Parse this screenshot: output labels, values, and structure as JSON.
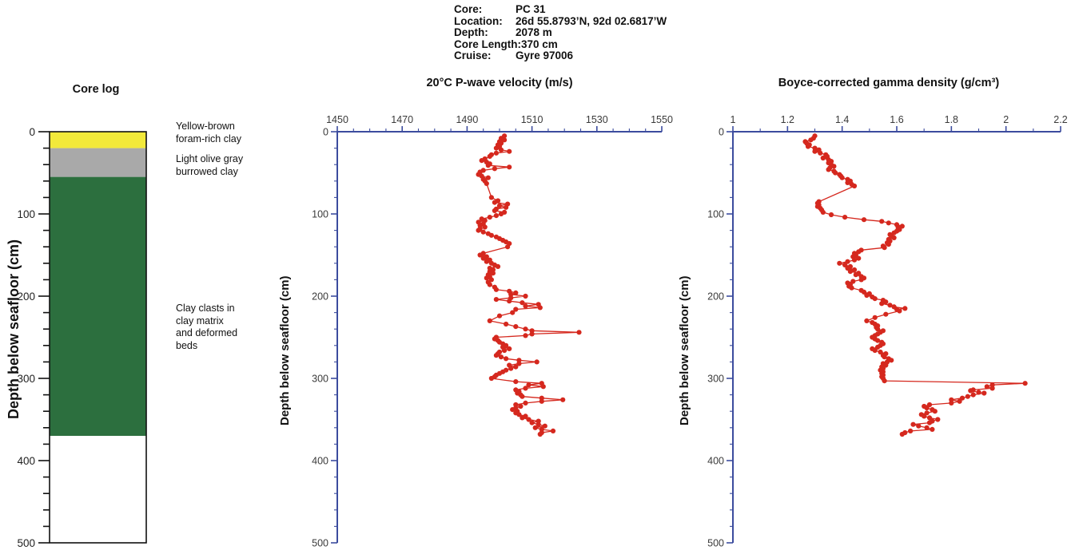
{
  "header": {
    "rows": [
      {
        "label": "Core:",
        "value": "PC 31"
      },
      {
        "label": "Location:",
        "value": "26d 55.8793’N, 92d 02.6817’W"
      },
      {
        "label": "Depth:",
        "value": "2078 m"
      },
      {
        "label": "Core Length:",
        "value": "370 cm"
      },
      {
        "label": "Cruise:",
        "value": "Gyre 97006"
      }
    ]
  },
  "colors": {
    "axis": "#3c4c9e",
    "tick_label": "#3a3a3a",
    "series": "#d5281e",
    "core_border": "#111111"
  },
  "chart_data": [
    {
      "type": "strat-column",
      "title": "Core log",
      "ylabel": "Depth below seafloor (cm)",
      "ylim": [
        0,
        500
      ],
      "y_major": 100,
      "y_minor": 20,
      "layers": [
        {
          "label": "Yellow-brown\nforam-rich clay",
          "top_cm": 0,
          "bottom_cm": 20,
          "color": "#f2e93a"
        },
        {
          "label": "Light olive gray\nburrowed clay",
          "top_cm": 20,
          "bottom_cm": 55,
          "color": "#a9a9a9"
        },
        {
          "label": "Clay clasts in\nclay matrix\nand deformed\nbeds",
          "top_cm": 55,
          "bottom_cm": 370,
          "color": "#2c6f3e"
        },
        {
          "label": "",
          "top_cm": 370,
          "bottom_cm": 500,
          "color": "#ffffff"
        }
      ]
    },
    {
      "type": "line",
      "title": "20°C P-wave velocity (m/s)",
      "ylabel": "Depth below seafloor (cm)",
      "xlim": [
        1450,
        1550
      ],
      "x_major": 20,
      "x_minor": 5,
      "ylim": [
        0,
        500
      ],
      "y_major": 100,
      "y_minor": 20,
      "legend": "none",
      "grid": false,
      "x_axis_position": "top",
      "marker": "circle",
      "points": [
        [
          5,
          1501.5
        ],
        [
          8,
          1500.5
        ],
        [
          10,
          1501.5
        ],
        [
          12,
          1500
        ],
        [
          14,
          1500.5
        ],
        [
          16,
          1499.5
        ],
        [
          18,
          1500
        ],
        [
          20,
          1499
        ],
        [
          22,
          1500.5
        ],
        [
          24,
          1503
        ],
        [
          26,
          1499
        ],
        [
          28,
          1497.5
        ],
        [
          30,
          1497
        ],
        [
          33,
          1495.5
        ],
        [
          35,
          1494.5
        ],
        [
          37,
          1496
        ],
        [
          39,
          1497
        ],
        [
          41,
          1496.5
        ],
        [
          43,
          1503
        ],
        [
          45,
          1498.5
        ],
        [
          47,
          1495
        ],
        [
          49,
          1494
        ],
        [
          52,
          1493.5
        ],
        [
          54,
          1494.5
        ],
        [
          56,
          1496.5
        ],
        [
          58,
          1495
        ],
        [
          60,
          1495.5
        ],
        [
          63,
          1496
        ],
        [
          80,
          1497.5
        ],
        [
          84,
          1499.5
        ],
        [
          86,
          1498.5
        ],
        [
          88,
          1502.5
        ],
        [
          90,
          1500
        ],
        [
          92,
          1502
        ],
        [
          94,
          1499
        ],
        [
          96,
          1498.5
        ],
        [
          98,
          1501.5
        ],
        [
          100,
          1500.5
        ],
        [
          102,
          1499
        ],
        [
          104,
          1497
        ],
        [
          106,
          1494.5
        ],
        [
          108,
          1495.5
        ],
        [
          110,
          1493.5
        ],
        [
          112,
          1495
        ],
        [
          114,
          1494
        ],
        [
          116,
          1495.5
        ],
        [
          118,
          1494
        ],
        [
          120,
          1493.5
        ],
        [
          122,
          1495
        ],
        [
          124,
          1496.5
        ],
        [
          126,
          1497.5
        ],
        [
          128,
          1499
        ],
        [
          130,
          1500
        ],
        [
          132,
          1501
        ],
        [
          134,
          1502
        ],
        [
          136,
          1503
        ],
        [
          140,
          1502.5
        ],
        [
          148,
          1495
        ],
        [
          150,
          1494
        ],
        [
          152,
          1496
        ],
        [
          154,
          1495
        ],
        [
          156,
          1497
        ],
        [
          158,
          1496
        ],
        [
          160,
          1497.5
        ],
        [
          162,
          1498.5
        ],
        [
          164,
          1499.5
        ],
        [
          166,
          1497
        ],
        [
          168,
          1498
        ],
        [
          170,
          1497
        ],
        [
          172,
          1498
        ],
        [
          174,
          1496.5
        ],
        [
          176,
          1497
        ],
        [
          178,
          1496
        ],
        [
          180,
          1497.5
        ],
        [
          183,
          1496.5
        ],
        [
          186,
          1497
        ],
        [
          189,
          1498.5
        ],
        [
          192,
          1499
        ],
        [
          194,
          1503
        ],
        [
          196,
          1505
        ],
        [
          198,
          1503.5
        ],
        [
          200,
          1508
        ],
        [
          202,
          1503.5
        ],
        [
          204,
          1499
        ],
        [
          206,
          1503
        ],
        [
          208,
          1507
        ],
        [
          210,
          1512
        ],
        [
          212,
          1508
        ],
        [
          214,
          1512.5
        ],
        [
          216,
          1505
        ],
        [
          220,
          1504
        ],
        [
          224,
          1500
        ],
        [
          230,
          1497
        ],
        [
          234,
          1502
        ],
        [
          237,
          1505
        ],
        [
          240,
          1508
        ],
        [
          242,
          1510
        ],
        [
          244,
          1524.5
        ],
        [
          246,
          1510
        ],
        [
          248,
          1508
        ],
        [
          250,
          1499
        ],
        [
          252,
          1498.5
        ],
        [
          254,
          1499.5
        ],
        [
          256,
          1500
        ],
        [
          258,
          1501
        ],
        [
          260,
          1502
        ],
        [
          262,
          1501
        ],
        [
          264,
          1503
        ],
        [
          266,
          1501.5
        ],
        [
          268,
          1500
        ],
        [
          270,
          1499.5
        ],
        [
          272,
          1499
        ],
        [
          274,
          1500.5
        ],
        [
          276,
          1502
        ],
        [
          278,
          1506
        ],
        [
          280,
          1511.5
        ],
        [
          282,
          1506
        ],
        [
          284,
          1503
        ],
        [
          286,
          1505
        ],
        [
          288,
          1503.5
        ],
        [
          290,
          1502
        ],
        [
          292,
          1501
        ],
        [
          294,
          1500
        ],
        [
          296,
          1499
        ],
        [
          298,
          1498.5
        ],
        [
          300,
          1497.5
        ],
        [
          304,
          1505
        ],
        [
          306,
          1513
        ],
        [
          308,
          1509
        ],
        [
          310,
          1513.5
        ],
        [
          312,
          1508
        ],
        [
          314,
          1505
        ],
        [
          316,
          1506
        ],
        [
          318,
          1505.5
        ],
        [
          320,
          1506.5
        ],
        [
          322,
          1507
        ],
        [
          324,
          1513
        ],
        [
          326,
          1519.5
        ],
        [
          328,
          1513
        ],
        [
          330,
          1508
        ],
        [
          332,
          1505
        ],
        [
          334,
          1506.5
        ],
        [
          336,
          1505
        ],
        [
          338,
          1504
        ],
        [
          340,
          1505.5
        ],
        [
          342,
          1505
        ],
        [
          344,
          1506
        ],
        [
          346,
          1508
        ],
        [
          348,
          1507
        ],
        [
          350,
          1509
        ],
        [
          352,
          1512
        ],
        [
          354,
          1510
        ],
        [
          356,
          1512
        ],
        [
          358,
          1514
        ],
        [
          360,
          1511
        ],
        [
          362,
          1513
        ],
        [
          364,
          1516.5
        ],
        [
          366,
          1513
        ],
        [
          368,
          1512.5
        ]
      ]
    },
    {
      "type": "line",
      "title": "Boyce-corrected gamma density (g/cm³)",
      "ylabel": "Depth below seafloor (cm)",
      "xlim": [
        1,
        2.2
      ],
      "x_major": 0.2,
      "x_minor": 0.1,
      "ylim": [
        0,
        500
      ],
      "y_major": 100,
      "y_minor": 20,
      "legend": "none",
      "grid": false,
      "x_axis_position": "top",
      "marker": "circle",
      "points": [
        [
          5,
          1.3
        ],
        [
          8,
          1.295
        ],
        [
          10,
          1.285
        ],
        [
          12,
          1.265
        ],
        [
          14,
          1.27
        ],
        [
          16,
          1.28
        ],
        [
          18,
          1.275
        ],
        [
          20,
          1.3
        ],
        [
          22,
          1.315
        ],
        [
          24,
          1.3
        ],
        [
          26,
          1.32
        ],
        [
          28,
          1.34
        ],
        [
          30,
          1.345
        ],
        [
          32,
          1.33
        ],
        [
          34,
          1.35
        ],
        [
          36,
          1.36
        ],
        [
          38,
          1.35
        ],
        [
          40,
          1.36
        ],
        [
          42,
          1.37
        ],
        [
          44,
          1.355
        ],
        [
          46,
          1.35
        ],
        [
          48,
          1.37
        ],
        [
          50,
          1.375
        ],
        [
          52,
          1.39
        ],
        [
          54,
          1.395
        ],
        [
          56,
          1.4
        ],
        [
          58,
          1.42
        ],
        [
          60,
          1.43
        ],
        [
          62,
          1.42
        ],
        [
          64,
          1.435
        ],
        [
          66,
          1.445
        ],
        [
          85,
          1.315
        ],
        [
          87,
          1.31
        ],
        [
          89,
          1.315
        ],
        [
          91,
          1.31
        ],
        [
          93,
          1.32
        ],
        [
          95,
          1.325
        ],
        [
          98,
          1.33
        ],
        [
          101,
          1.36
        ],
        [
          104,
          1.41
        ],
        [
          107,
          1.48
        ],
        [
          109,
          1.545
        ],
        [
          111,
          1.57
        ],
        [
          113,
          1.6
        ],
        [
          115,
          1.62
        ],
        [
          117,
          1.605
        ],
        [
          119,
          1.61
        ],
        [
          121,
          1.6
        ],
        [
          123,
          1.59
        ],
        [
          125,
          1.575
        ],
        [
          127,
          1.58
        ],
        [
          129,
          1.59
        ],
        [
          131,
          1.57
        ],
        [
          133,
          1.575
        ],
        [
          135,
          1.565
        ],
        [
          137,
          1.57
        ],
        [
          139,
          1.55
        ],
        [
          141,
          1.555
        ],
        [
          144,
          1.47
        ],
        [
          146,
          1.46
        ],
        [
          148,
          1.445
        ],
        [
          150,
          1.45
        ],
        [
          152,
          1.44
        ],
        [
          154,
          1.46
        ],
        [
          156,
          1.445
        ],
        [
          158,
          1.42
        ],
        [
          160,
          1.39
        ],
        [
          162,
          1.41
        ],
        [
          164,
          1.43
        ],
        [
          166,
          1.42
        ],
        [
          168,
          1.445
        ],
        [
          170,
          1.43
        ],
        [
          172,
          1.46
        ],
        [
          174,
          1.45
        ],
        [
          176,
          1.47
        ],
        [
          178,
          1.48
        ],
        [
          180,
          1.47
        ],
        [
          182,
          1.44
        ],
        [
          184,
          1.42
        ],
        [
          186,
          1.43
        ],
        [
          188,
          1.425
        ],
        [
          190,
          1.435
        ],
        [
          193,
          1.47
        ],
        [
          195,
          1.48
        ],
        [
          197,
          1.5
        ],
        [
          199,
          1.49
        ],
        [
          201,
          1.51
        ],
        [
          203,
          1.52
        ],
        [
          205,
          1.55
        ],
        [
          207,
          1.56
        ],
        [
          209,
          1.545
        ],
        [
          211,
          1.575
        ],
        [
          213,
          1.59
        ],
        [
          215,
          1.63
        ],
        [
          216,
          1.6
        ],
        [
          218,
          1.61
        ],
        [
          222,
          1.56
        ],
        [
          226,
          1.52
        ],
        [
          230,
          1.49
        ],
        [
          232,
          1.51
        ],
        [
          234,
          1.52
        ],
        [
          236,
          1.53
        ],
        [
          238,
          1.525
        ],
        [
          240,
          1.53
        ],
        [
          242,
          1.55
        ],
        [
          244,
          1.54
        ],
        [
          246,
          1.53
        ],
        [
          248,
          1.52
        ],
        [
          250,
          1.51
        ],
        [
          252,
          1.52
        ],
        [
          254,
          1.53
        ],
        [
          256,
          1.545
        ],
        [
          258,
          1.55
        ],
        [
          260,
          1.54
        ],
        [
          262,
          1.53
        ],
        [
          264,
          1.51
        ],
        [
          266,
          1.52
        ],
        [
          268,
          1.54
        ],
        [
          270,
          1.56
        ],
        [
          272,
          1.55
        ],
        [
          274,
          1.555
        ],
        [
          276,
          1.57
        ],
        [
          278,
          1.58
        ],
        [
          280,
          1.565
        ],
        [
          282,
          1.55
        ],
        [
          284,
          1.56
        ],
        [
          286,
          1.545
        ],
        [
          288,
          1.55
        ],
        [
          290,
          1.54
        ],
        [
          292,
          1.55
        ],
        [
          294,
          1.545
        ],
        [
          296,
          1.55
        ],
        [
          298,
          1.545
        ],
        [
          300,
          1.55
        ],
        [
          303,
          1.555
        ],
        [
          306,
          2.07
        ],
        [
          308,
          1.95
        ],
        [
          310,
          1.93
        ],
        [
          312,
          1.95
        ],
        [
          314,
          1.88
        ],
        [
          315,
          1.87
        ],
        [
          317,
          1.9
        ],
        [
          318,
          1.92
        ],
        [
          320,
          1.88
        ],
        [
          322,
          1.86
        ],
        [
          324,
          1.84
        ],
        [
          326,
          1.8
        ],
        [
          328,
          1.83
        ],
        [
          330,
          1.8
        ],
        [
          332,
          1.72
        ],
        [
          334,
          1.7
        ],
        [
          336,
          1.71
        ],
        [
          338,
          1.73
        ],
        [
          340,
          1.74
        ],
        [
          342,
          1.71
        ],
        [
          344,
          1.69
        ],
        [
          346,
          1.7
        ],
        [
          348,
          1.72
        ],
        [
          350,
          1.75
        ],
        [
          352,
          1.73
        ],
        [
          354,
          1.72
        ],
        [
          356,
          1.66
        ],
        [
          358,
          1.68
        ],
        [
          360,
          1.71
        ],
        [
          362,
          1.73
        ],
        [
          364,
          1.65
        ],
        [
          366,
          1.63
        ],
        [
          368,
          1.62
        ]
      ]
    }
  ]
}
